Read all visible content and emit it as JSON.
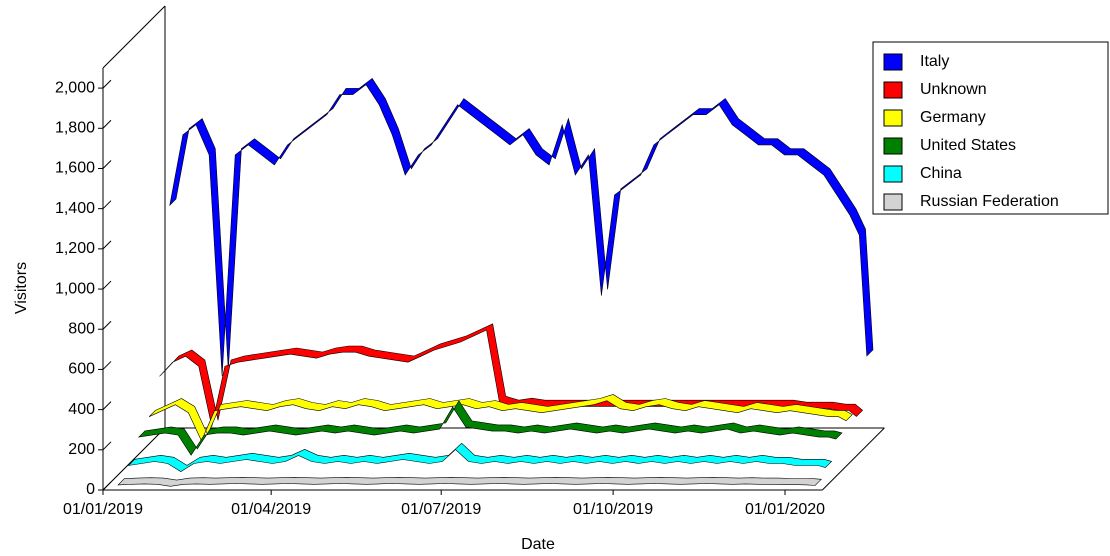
{
  "chart_data": {
    "type": "ribbon3d",
    "x_label": "Date",
    "y_label": "Visitors",
    "xlim": [
      "2019-01-01",
      "2020-01-21"
    ],
    "xticks": [
      {
        "value": "2019-01-01",
        "label": "01/01/2019"
      },
      {
        "value": "2019-04-01",
        "label": "01/04/2019"
      },
      {
        "value": "2019-07-01",
        "label": "01/07/2019"
      },
      {
        "value": "2019-10-01",
        "label": "01/10/2019"
      },
      {
        "value": "2020-01-01",
        "label": "01/01/2020"
      }
    ],
    "ylim": [
      0,
      2100
    ],
    "yticks": [
      0,
      200,
      400,
      600,
      800,
      {
        "value": 1000,
        "label": "1,000"
      },
      {
        "value": 1200,
        "label": "1,200"
      },
      {
        "value": 1400,
        "label": "1,400"
      },
      {
        "value": 1600,
        "label": "1,600"
      },
      {
        "value": 1800,
        "label": "1,800"
      },
      {
        "value": 2000,
        "label": "2,000"
      }
    ],
    "legend": "right",
    "x": [
      "2019-01-08",
      "2019-01-15",
      "2019-01-22",
      "2019-01-29",
      "2019-02-05",
      "2019-02-12",
      "2019-02-19",
      "2019-02-26",
      "2019-03-05",
      "2019-03-12",
      "2019-03-19",
      "2019-03-26",
      "2019-04-02",
      "2019-04-09",
      "2019-04-16",
      "2019-04-23",
      "2019-04-30",
      "2019-05-07",
      "2019-05-14",
      "2019-05-21",
      "2019-05-28",
      "2019-06-04",
      "2019-06-11",
      "2019-06-18",
      "2019-06-25",
      "2019-07-02",
      "2019-07-09",
      "2019-07-16",
      "2019-07-23",
      "2019-07-30",
      "2019-08-06",
      "2019-08-13",
      "2019-08-20",
      "2019-08-27",
      "2019-09-03",
      "2019-09-10",
      "2019-09-17",
      "2019-09-24",
      "2019-10-01",
      "2019-10-08",
      "2019-10-15",
      "2019-10-22",
      "2019-10-29",
      "2019-11-05",
      "2019-11-12",
      "2019-11-19",
      "2019-11-26",
      "2019-12-03",
      "2019-12-10",
      "2019-12-17",
      "2019-12-24",
      "2019-12-31",
      "2020-01-07",
      "2020-01-12",
      "2020-01-16"
    ],
    "series": [
      {
        "name": "Italy",
        "color": "#0000ff",
        "values": [
          1150,
          1500,
          1550,
          1400,
          300,
          1400,
          1450,
          1400,
          1350,
          1450,
          1500,
          1550,
          1600,
          1700,
          1700,
          1750,
          1650,
          1500,
          1300,
          1400,
          1450,
          1550,
          1650,
          1600,
          1550,
          1500,
          1450,
          1500,
          1400,
          1350,
          1550,
          1300,
          1400,
          700,
          1200,
          1250,
          1300,
          1450,
          1500,
          1550,
          1600,
          1600,
          1650,
          1550,
          1500,
          1450,
          1450,
          1400,
          1400,
          1350,
          1300,
          1200,
          1100,
          1000,
          400
        ]
      },
      {
        "name": "Unknown",
        "color": "#ff0000",
        "values": [
          350,
          420,
          450,
          400,
          100,
          400,
          420,
          430,
          440,
          450,
          460,
          450,
          440,
          460,
          470,
          470,
          450,
          440,
          430,
          420,
          450,
          480,
          500,
          520,
          550,
          580,
          220,
          200,
          210,
          200,
          200,
          200,
          200,
          200,
          200,
          200,
          200,
          200,
          200,
          200,
          200,
          200,
          200,
          200,
          200,
          200,
          200,
          200,
          200,
          190,
          190,
          190,
          180,
          180,
          150
        ]
      },
      {
        "name": "Germany",
        "color": "#ffff00",
        "values": [
          200,
          230,
          260,
          220,
          80,
          230,
          240,
          250,
          240,
          230,
          250,
          260,
          240,
          230,
          250,
          240,
          260,
          250,
          230,
          240,
          250,
          260,
          240,
          250,
          260,
          240,
          250,
          230,
          240,
          230,
          220,
          230,
          240,
          250,
          260,
          280,
          240,
          230,
          250,
          260,
          240,
          230,
          250,
          240,
          230,
          220,
          240,
          230,
          220,
          230,
          220,
          210,
          200,
          200,
          180
        ]
      },
      {
        "name": "United States",
        "color": "#008000",
        "values": [
          150,
          160,
          170,
          160,
          60,
          160,
          170,
          170,
          160,
          170,
          180,
          170,
          160,
          170,
          180,
          170,
          180,
          170,
          160,
          170,
          180,
          170,
          180,
          190,
          300,
          200,
          190,
          180,
          180,
          170,
          180,
          170,
          180,
          190,
          180,
          170,
          180,
          170,
          180,
          190,
          180,
          170,
          180,
          170,
          180,
          190,
          170,
          180,
          170,
          160,
          170,
          160,
          150,
          150,
          140
        ]
      },
      {
        "name": "China",
        "color": "#00ffff",
        "values": [
          60,
          70,
          80,
          70,
          30,
          70,
          80,
          70,
          80,
          90,
          80,
          70,
          80,
          110,
          80,
          70,
          80,
          70,
          80,
          70,
          80,
          90,
          80,
          70,
          80,
          140,
          80,
          70,
          80,
          70,
          80,
          70,
          80,
          70,
          80,
          70,
          80,
          70,
          80,
          70,
          80,
          70,
          80,
          70,
          80,
          70,
          80,
          70,
          80,
          70,
          70,
          60,
          60,
          60,
          50
        ]
      },
      {
        "name": "Russian Federation",
        "color": "#d3d3d3",
        "values": [
          15,
          18,
          20,
          18,
          8,
          18,
          20,
          18,
          20,
          22,
          20,
          18,
          20,
          22,
          20,
          18,
          20,
          22,
          20,
          18,
          20,
          22,
          20,
          18,
          20,
          22,
          20,
          18,
          20,
          22,
          20,
          18,
          20,
          22,
          20,
          18,
          20,
          22,
          20,
          18,
          20,
          22,
          20,
          18,
          20,
          22,
          20,
          18,
          20,
          18,
          18,
          16,
          16,
          15,
          12
        ]
      }
    ]
  }
}
